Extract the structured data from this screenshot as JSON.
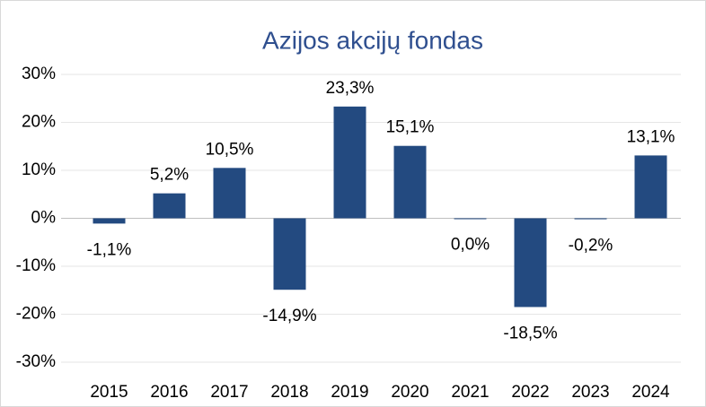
{
  "chart_data": {
    "type": "bar",
    "title": "Azijos akcijų fondas",
    "categories": [
      "2015",
      "2016",
      "2017",
      "2018",
      "2019",
      "2020",
      "2021",
      "2022",
      "2023",
      "2024"
    ],
    "values": [
      -1.1,
      5.2,
      10.5,
      -14.9,
      23.3,
      15.1,
      0.0,
      -18.5,
      -0.2,
      13.1
    ],
    "value_labels": [
      "-1,1%",
      "5,2%",
      "10,5%",
      "-14,9%",
      "23,3%",
      "15,1%",
      "0,0%",
      "-18,5%",
      "-0,2%",
      "13,1%"
    ],
    "color": "#234a80",
    "ylim": [
      -30,
      30
    ],
    "yticks": [
      {
        "value": -30,
        "label": "-30%"
      },
      {
        "value": -20,
        "label": "-20%"
      },
      {
        "value": -10,
        "label": "-10%"
      },
      {
        "value": 0,
        "label": "0%"
      },
      {
        "value": 10,
        "label": "10%"
      },
      {
        "value": 20,
        "label": "20%"
      },
      {
        "value": 30,
        "label": "30%"
      }
    ],
    "grid": true
  }
}
